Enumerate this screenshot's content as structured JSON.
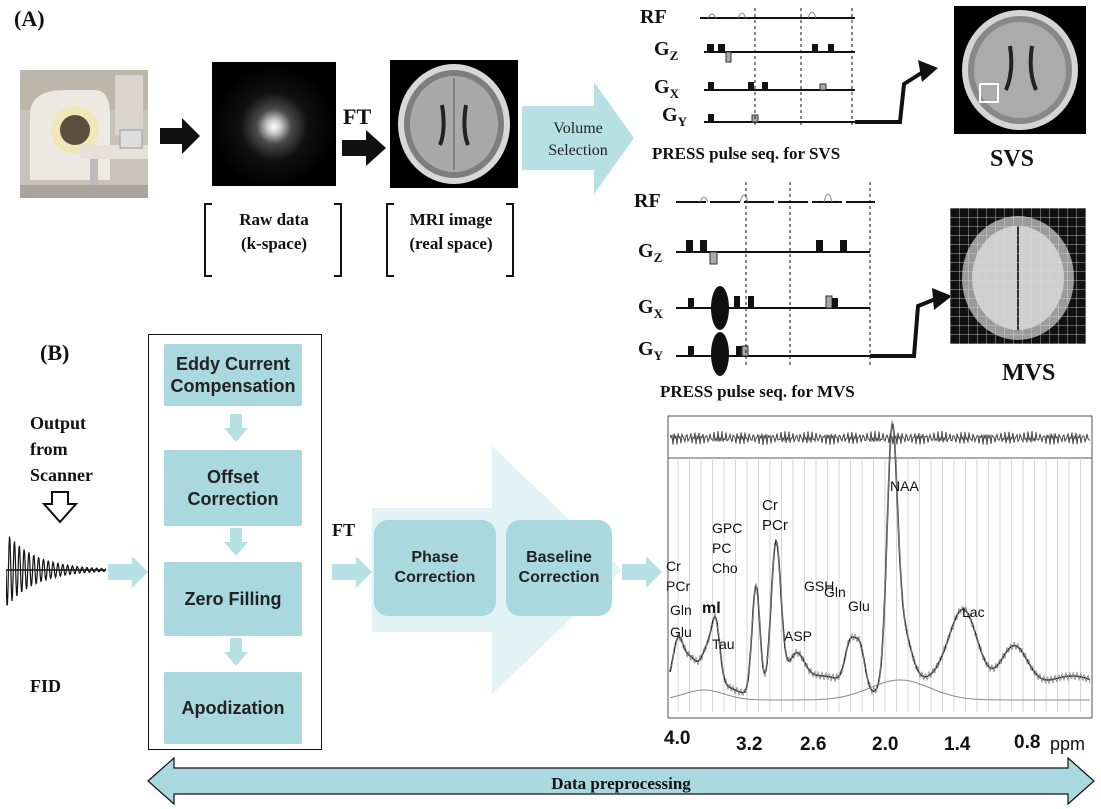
{
  "panel_a_label": "(A)",
  "panel_b_label": "(B)",
  "arrow_ft_1": "FT",
  "raw_data_caption": [
    "Raw data",
    "(k-space)"
  ],
  "mri_caption": [
    "MRI image",
    "(real space)"
  ],
  "volume_selection": [
    "Volume",
    "Selection"
  ],
  "svs": {
    "labels": {
      "rf": "RF",
      "gz": "G",
      "gz_sub": "Z",
      "gx": "G",
      "gx_sub": "X",
      "gy": "G",
      "gy_sub": "Y"
    },
    "caption": "PRESS pulse seq. for SVS",
    "result": "SVS"
  },
  "mvs": {
    "labels": {
      "rf": "RF",
      "gz": "G",
      "gz_sub": "Z",
      "gx": "G",
      "gx_sub": "X",
      "gy": "G",
      "gy_sub": "Y"
    },
    "caption": "PRESS pulse seq. for MVS",
    "result": "MVS"
  },
  "output_from_scanner": [
    "Output",
    "from",
    "Scanner"
  ],
  "fid": "FID",
  "pipeline": [
    [
      "Eddy Current",
      "Compensation"
    ],
    [
      "Offset",
      "Correction"
    ],
    [
      "Zero Filling"
    ],
    [
      "Apodization"
    ]
  ],
  "ft_label": "FT",
  "phase_correction": [
    "Phase",
    "Correction"
  ],
  "baseline_correction": [
    "Baseline",
    "Correction"
  ],
  "spectrum": {
    "peaks": {
      "naa": "NAA",
      "cr_left": [
        "Cr",
        "PCr"
      ],
      "gln_left": "Gln",
      "ml": "ml",
      "glu_left": "Glu",
      "tau": "Tau",
      "gpc": [
        "GPC",
        "PC",
        "Cho"
      ],
      "cr_mid": [
        "Cr",
        "PCr"
      ],
      "gsh": "GSH",
      "asp": "ASP",
      "gln_right": "Gln",
      "glu_right": "Glu",
      "lac": "Lac"
    },
    "ticks": [
      "4.0",
      "3.2",
      "2.6",
      "2.0",
      "1.4",
      "0.8"
    ],
    "unit": "ppm"
  },
  "data_preprocessing": "Data preprocessing",
  "colors": {
    "accent": "#a9d8de",
    "arrow": "#b7e0e4"
  }
}
